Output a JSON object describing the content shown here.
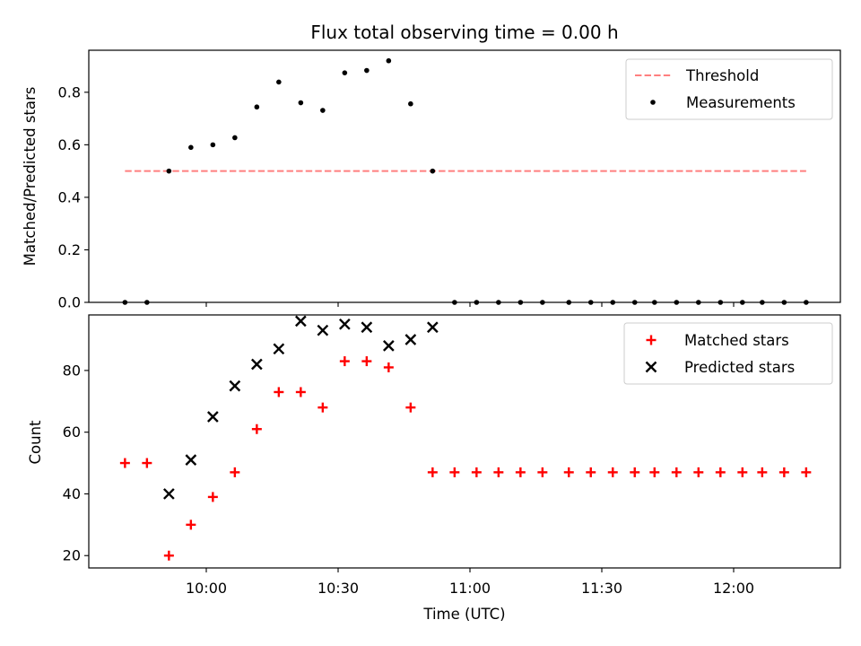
{
  "chart_data": {
    "title": "Flux total observing time = 0.00 h",
    "xlabel": "Time (UTC)",
    "x_ticks": [
      "10:00",
      "10:30",
      "11:00",
      "11:30",
      "12:00"
    ],
    "panels": [
      {
        "type": "scatter",
        "ylabel": "Matched/Predicted stars",
        "ylim": [
          0,
          0.96
        ],
        "y_ticks": [
          "0.0",
          "0.2",
          "0.4",
          "0.6",
          "0.8"
        ],
        "threshold": {
          "name": "Threshold",
          "value": 0.5,
          "x_range": [
            "09:41:30",
            "12:16:30"
          ],
          "color": "#ff7f7f",
          "style": "dashed"
        },
        "series": [
          {
            "name": "Measurements",
            "color": "#000000",
            "marker": "dot",
            "points": [
              [
                "09:41:30",
                0.0
              ],
              [
                "09:46:30",
                0.0
              ],
              [
                "09:51:30",
                0.5
              ],
              [
                "09:56:30",
                0.59
              ],
              [
                "10:01:30",
                0.6
              ],
              [
                "10:06:30",
                0.627
              ],
              [
                "10:11:30",
                0.744
              ],
              [
                "10:16:30",
                0.839
              ],
              [
                "10:21:30",
                0.76
              ],
              [
                "10:26:30",
                0.731
              ],
              [
                "10:31:30",
                0.874
              ],
              [
                "10:36:30",
                0.883
              ],
              [
                "10:41:30",
                0.92
              ],
              [
                "10:46:30",
                0.756
              ],
              [
                "10:51:30",
                0.5
              ],
              [
                "10:56:30",
                0.0
              ],
              [
                "11:01:30",
                0.0
              ],
              [
                "11:06:30",
                0.0
              ],
              [
                "11:11:30",
                0.0
              ],
              [
                "11:16:30",
                0.0
              ],
              [
                "11:22:30",
                0.0
              ],
              [
                "11:27:30",
                0.0
              ],
              [
                "11:32:30",
                0.0
              ],
              [
                "11:37:30",
                0.0
              ],
              [
                "11:42:00",
                0.0
              ],
              [
                "11:47:00",
                0.0
              ],
              [
                "11:52:00",
                0.0
              ],
              [
                "11:57:00",
                0.0
              ],
              [
                "12:02:00",
                0.0
              ],
              [
                "12:06:30",
                0.0
              ],
              [
                "12:11:30",
                0.0
              ],
              [
                "12:16:30",
                0.0
              ]
            ]
          }
        ],
        "legend": {
          "placement": "top-right",
          "entries": [
            "Threshold",
            "Measurements"
          ]
        }
      },
      {
        "type": "scatter",
        "ylabel": "Count",
        "ylim": [
          16,
          98
        ],
        "y_ticks": [
          "20",
          "40",
          "60",
          "80"
        ],
        "series": [
          {
            "name": "Matched stars",
            "color": "#ff0000",
            "marker": "plus",
            "points": [
              [
                "09:41:30",
                50
              ],
              [
                "09:46:30",
                50
              ],
              [
                "09:51:30",
                20
              ],
              [
                "09:56:30",
                30
              ],
              [
                "10:01:30",
                39
              ],
              [
                "10:06:30",
                47
              ],
              [
                "10:11:30",
                61
              ],
              [
                "10:16:30",
                73
              ],
              [
                "10:21:30",
                73
              ],
              [
                "10:26:30",
                68
              ],
              [
                "10:31:30",
                83
              ],
              [
                "10:36:30",
                83
              ],
              [
                "10:41:30",
                81
              ],
              [
                "10:46:30",
                68
              ],
              [
                "10:51:30",
                47
              ],
              [
                "10:56:30",
                47
              ],
              [
                "11:01:30",
                47
              ],
              [
                "11:06:30",
                47
              ],
              [
                "11:11:30",
                47
              ],
              [
                "11:16:30",
                47
              ],
              [
                "11:22:30",
                47
              ],
              [
                "11:27:30",
                47
              ],
              [
                "11:32:30",
                47
              ],
              [
                "11:37:30",
                47
              ],
              [
                "11:42:00",
                47
              ],
              [
                "11:47:00",
                47
              ],
              [
                "11:52:00",
                47
              ],
              [
                "11:57:00",
                47
              ],
              [
                "12:02:00",
                47
              ],
              [
                "12:06:30",
                47
              ],
              [
                "12:11:30",
                47
              ],
              [
                "12:16:30",
                47
              ]
            ]
          },
          {
            "name": "Predicted stars",
            "color": "#000000",
            "marker": "x",
            "points": [
              [
                "09:51:30",
                40
              ],
              [
                "09:56:30",
                51
              ],
              [
                "10:01:30",
                65
              ],
              [
                "10:06:30",
                75
              ],
              [
                "10:11:30",
                82
              ],
              [
                "10:16:30",
                87
              ],
              [
                "10:21:30",
                96
              ],
              [
                "10:26:30",
                93
              ],
              [
                "10:31:30",
                95
              ],
              [
                "10:36:30",
                94
              ],
              [
                "10:41:30",
                88
              ],
              [
                "10:46:30",
                90
              ],
              [
                "10:51:30",
                94
              ]
            ]
          }
        ],
        "legend": {
          "placement": "top-right",
          "entries": [
            "Matched stars",
            "Predicted stars"
          ]
        }
      }
    ]
  }
}
